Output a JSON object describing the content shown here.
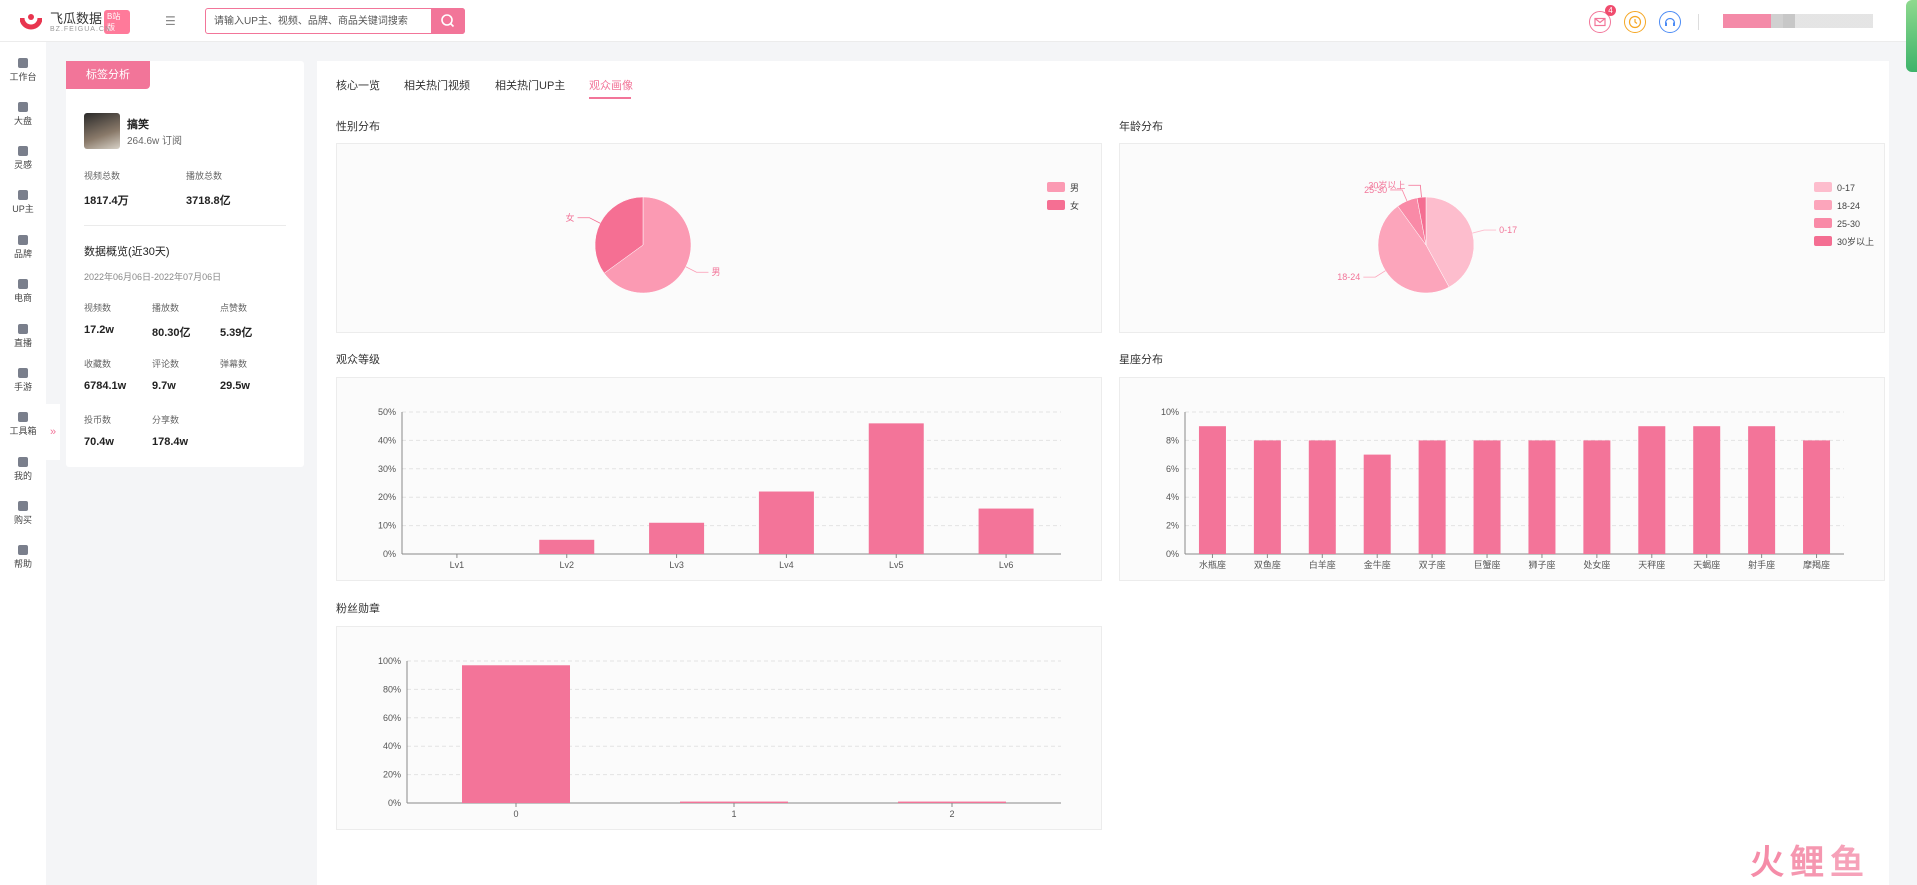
{
  "app": {
    "name": "飞瓜数据",
    "badge": "B站版",
    "sub": "BZ.FEIGUA.CN"
  },
  "search": {
    "placeholder": "请输入UP主、视频、品牌、商品关键词搜索"
  },
  "topbar": {
    "mail_count": "4"
  },
  "sidebar": {
    "items": [
      {
        "label": "工作台",
        "icon": "home-icon"
      },
      {
        "label": "大盘",
        "icon": "pie-icon"
      },
      {
        "label": "灵感",
        "icon": "bulb-icon"
      },
      {
        "label": "UP主",
        "icon": "search-icon"
      },
      {
        "label": "品牌",
        "icon": "diamond-icon"
      },
      {
        "label": "电商",
        "icon": "cart-icon"
      },
      {
        "label": "直播",
        "icon": "tv-icon"
      },
      {
        "label": "手游",
        "icon": "gamepad-icon"
      },
      {
        "label": "工具箱",
        "icon": "toolbox-icon"
      },
      {
        "label": "我的",
        "icon": "user-icon"
      },
      {
        "label": "购买",
        "icon": "card-icon"
      },
      {
        "label": "帮助",
        "icon": "help-icon"
      }
    ]
  },
  "left": {
    "tag": "标签分析",
    "up_name": "搞笑",
    "up_sub": "264.6w 订阅",
    "totals": [
      {
        "label": "视频总数",
        "value": "1817.4万"
      },
      {
        "label": "播放总数",
        "value": "3718.8亿"
      }
    ],
    "overview_title": "数据概览(近30天)",
    "date_range": "2022年06月06日-2022年07月06日",
    "stats": [
      {
        "label": "视频数",
        "value": "17.2w"
      },
      {
        "label": "播放数",
        "value": "80.30亿"
      },
      {
        "label": "点赞数",
        "value": "5.39亿"
      },
      {
        "label": "收藏数",
        "value": "6784.1w"
      },
      {
        "label": "评论数",
        "value": "9.7w"
      },
      {
        "label": "弹幕数",
        "value": "29.5w"
      },
      {
        "label": "投币数",
        "value": "70.4w"
      },
      {
        "label": "分享数",
        "value": "178.4w"
      }
    ]
  },
  "tabs": [
    "核心一览",
    "相关热门视频",
    "相关热门UP主",
    "观众画像"
  ],
  "sections": {
    "gender": "性别分布",
    "age": "年龄分布",
    "level": "观众等级",
    "zodiac": "星座分布",
    "medal": "粉丝勋章"
  },
  "colors": {
    "accent": "#f27599",
    "bar": "#f37499"
  },
  "chart_data": [
    {
      "type": "pie",
      "categories": [
        "男",
        "女"
      ],
      "values": [
        65,
        35
      ],
      "colors": [
        "#fb9ab3",
        "#f56f93"
      ],
      "legend": "top-right"
    },
    {
      "type": "pie",
      "categories": [
        "0-17",
        "18-24",
        "25-30",
        "30岁以上"
      ],
      "values": [
        42,
        48,
        7,
        3
      ],
      "colors": [
        "#fdbdcd",
        "#fca5bb",
        "#f98aa7",
        "#f46e92"
      ],
      "legend": "top-right"
    },
    {
      "type": "bar",
      "categories": [
        "Lv1",
        "Lv2",
        "Lv3",
        "Lv4",
        "Lv5",
        "Lv6"
      ],
      "values": [
        0,
        5,
        11,
        22,
        46,
        16
      ],
      "ylim": [
        0,
        50
      ],
      "yticks": [
        "0%",
        "10%",
        "20%",
        "30%",
        "40%",
        "50%"
      ],
      "grid": true
    },
    {
      "type": "bar",
      "categories": [
        "水瓶座",
        "双鱼座",
        "白羊座",
        "金牛座",
        "双子座",
        "巨蟹座",
        "狮子座",
        "处女座",
        "天秤座",
        "天蝎座",
        "射手座",
        "摩羯座"
      ],
      "values": [
        9,
        8,
        8,
        7,
        8,
        8,
        8,
        8,
        9,
        9,
        9,
        8
      ],
      "ylim": [
        0,
        10
      ],
      "yticks": [
        "0%",
        "2%",
        "4%",
        "6%",
        "8%",
        "10%"
      ],
      "grid": true
    },
    {
      "type": "bar",
      "categories": [
        "0",
        "1",
        "2"
      ],
      "values": [
        97,
        1,
        1
      ],
      "ylim": [
        0,
        100
      ],
      "yticks": [
        "0%",
        "20%",
        "40%",
        "60%",
        "80%",
        "100%"
      ],
      "grid": true
    }
  ]
}
